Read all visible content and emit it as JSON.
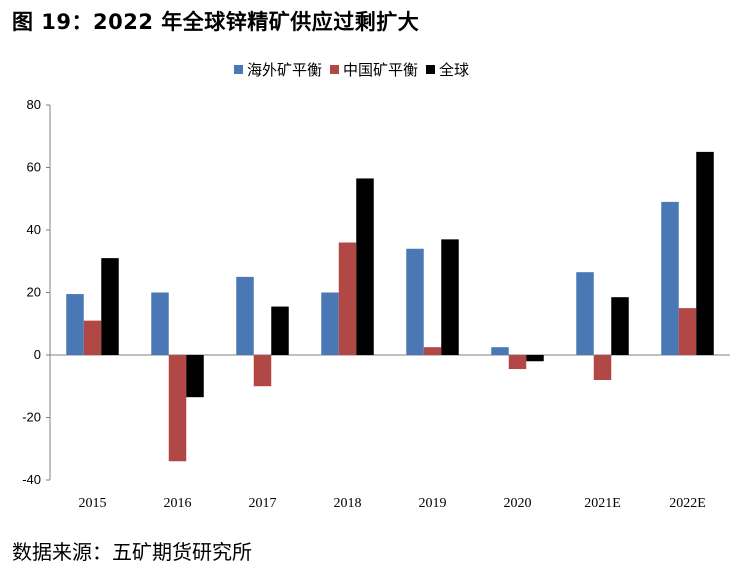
{
  "title": "图 19：2022 年全球锌精矿供应过剩扩大",
  "source": "数据来源：五矿期货研究所",
  "chart_data": {
    "type": "bar",
    "categories": [
      "2015",
      "2016",
      "2017",
      "2018",
      "2019",
      "2020",
      "2021E",
      "2022E"
    ],
    "series": [
      {
        "name": "海外矿平衡",
        "color": "#4a78b5",
        "values": [
          19.5,
          20,
          25,
          20,
          34,
          2.5,
          26.5,
          49
        ]
      },
      {
        "name": "中国矿平衡",
        "color": "#b24845",
        "values": [
          11,
          -34,
          -10,
          36,
          2.5,
          -4.5,
          -8,
          15
        ]
      },
      {
        "name": "全球",
        "color": "#000000",
        "values": [
          31,
          -13.5,
          15.5,
          56.5,
          37,
          -2,
          18.5,
          65
        ]
      }
    ],
    "yticks": [
      "80",
      "60",
      "40",
      "20",
      "0",
      "-20",
      "-40"
    ],
    "ylim": [
      -40,
      80
    ],
    "xlabel": "",
    "ylabel": "",
    "legend_position": "top"
  }
}
